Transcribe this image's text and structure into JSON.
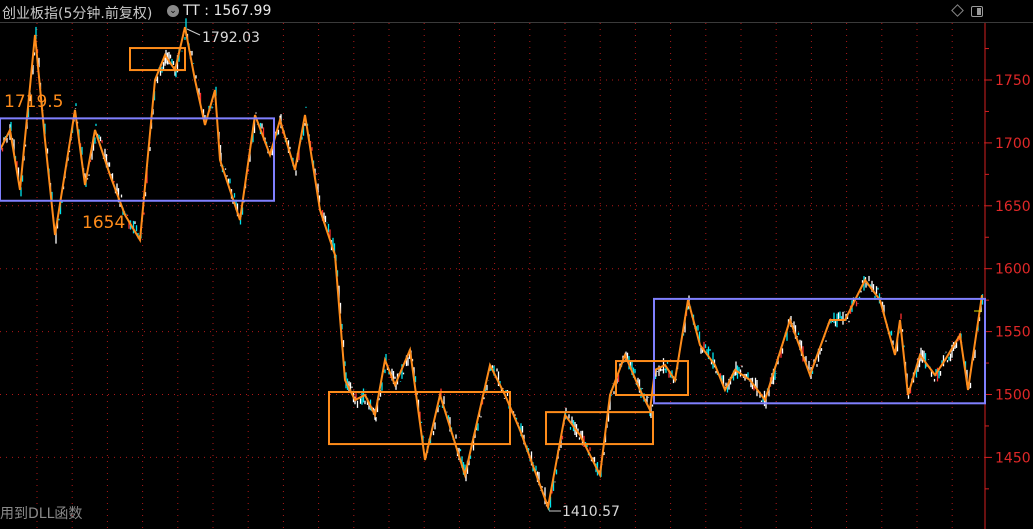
{
  "header": {
    "title": "创业板指(5分钟.前复权)",
    "dropdown_icon": "chevron-down-circle-icon",
    "tt_label": "TT : 1567.99",
    "icons": [
      "diamond-icon",
      "panel-toggle-icon"
    ]
  },
  "footer": {
    "text": "用到DLL函数"
  },
  "chart_data": {
    "type": "line",
    "title": "创业板指(5分钟.前复权)",
    "xlabel": "",
    "ylabel": "",
    "ylim": [
      1405,
      1800
    ],
    "y_ticks": [
      1450,
      1500,
      1550,
      1600,
      1650,
      1700,
      1750
    ],
    "grid": true,
    "colors": {
      "zigzag": "#ff8c1a",
      "price": "#ffffff",
      "price_down": "#00e5ee",
      "axis": "#d42020",
      "grid": "#b01818",
      "range_box": "#8080ff",
      "swing_box": "#ff8c1a"
    },
    "zigzag": {
      "x": [
        0,
        10,
        20,
        35,
        45,
        55,
        75,
        85,
        95,
        110,
        125,
        140,
        155,
        165,
        175,
        185,
        195,
        205,
        215,
        220,
        240,
        255,
        270,
        280,
        295,
        305,
        320,
        335,
        345,
        355,
        365,
        375,
        385,
        395,
        410,
        425,
        440,
        465,
        490,
        505,
        520,
        548,
        565,
        580,
        600,
        610,
        625,
        640,
        650,
        655,
        665,
        675,
        688,
        700,
        715,
        725,
        735,
        750,
        765,
        790,
        810,
        830,
        845,
        865,
        880,
        895,
        900,
        908,
        920,
        935,
        945,
        960,
        968,
        982
      ],
      "y": [
        1694.4,
        1710.3,
        1662.6,
        1785.8,
        1702.3,
        1626.8,
        1726.2,
        1666.5,
        1710.3,
        1674.5,
        1642.7,
        1622.8,
        1750,
        1769.9,
        1757.9,
        1792.03,
        1750,
        1714.2,
        1742,
        1686.4,
        1638.7,
        1722.2,
        1690.4,
        1718.2,
        1678.5,
        1722.2,
        1646.7,
        1610.9,
        1511.5,
        1495.6,
        1499.6,
        1483.7,
        1527.4,
        1507.6,
        1535.4,
        1447.9,
        1499.6,
        1436,
        1523.4,
        1499.6,
        1471.8,
        1410.57,
        1483.7,
        1467.8,
        1436,
        1499.6,
        1531.4,
        1503.6,
        1487.7,
        1519.5,
        1523.4,
        1511.5,
        1575.1,
        1539.3,
        1523.4,
        1503.6,
        1519.5,
        1511.5,
        1495.6,
        1559.2,
        1515.5,
        1559.2,
        1559.2,
        1591,
        1575.1,
        1531.4,
        1559.2,
        1499.6,
        1531.4,
        1515.5,
        1527.4,
        1547.3,
        1503.6,
        1579
      ]
    },
    "range_boxes": [
      {
        "x0": 0,
        "x1": 274,
        "top": 1719.5,
        "bottom": 1654
      },
      {
        "x0": 654,
        "x1": 985,
        "top": 1576,
        "bottom": 1493
      }
    ],
    "swing_boxes": [
      {
        "x0": 130,
        "x1": 185,
        "top": 1775.4,
        "bottom": 1757.9
      },
      {
        "x0": 329,
        "x1": 510,
        "top": 1502,
        "bottom": 1460.6
      },
      {
        "x0": 546,
        "x1": 653,
        "top": 1486,
        "bottom": 1460.6
      },
      {
        "x0": 616,
        "x1": 688,
        "top": 1526.6,
        "bottom": 1499.6
      }
    ],
    "annotations": {
      "high": "1792.03",
      "low": "1410.57",
      "range_top": "1719.5",
      "range_bottom": "1654"
    }
  }
}
